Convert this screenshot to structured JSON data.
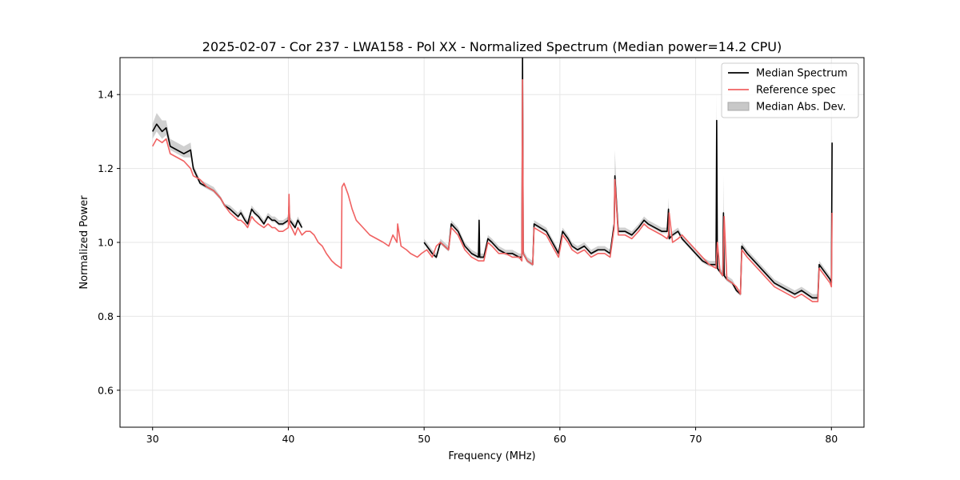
{
  "chart_data": {
    "type": "line",
    "title": "2025-02-07 - Cor 237 - LWA158 - Pol XX - Normalized Spectrum (Median power=14.2 CPU)",
    "xlabel": "Frequency (MHz)",
    "ylabel": "Normalized Power",
    "xlim": [
      27.6,
      82.4
    ],
    "ylim": [
      0.5,
      1.5
    ],
    "xticks": [
      30,
      40,
      50,
      60,
      70,
      80
    ],
    "yticks": [
      0.6,
      0.8,
      1.0,
      1.2,
      1.4
    ],
    "grid": true,
    "legend_position": "top-right",
    "colors": {
      "median": "#000000",
      "reference": "#f06262",
      "mad_fill": "#c8c8c8",
      "grid": "#e6e6e6"
    },
    "legend": [
      {
        "key": "median",
        "label": "Median Spectrum",
        "kind": "line"
      },
      {
        "key": "reference",
        "label": "Reference spec",
        "kind": "line"
      },
      {
        "key": "mad",
        "label": "Median Abs. Dev.",
        "kind": "patch"
      }
    ],
    "series": [
      {
        "name": "Reference spec",
        "x": [
          30.0,
          30.3,
          30.7,
          31.0,
          31.3,
          31.8,
          32.3,
          32.8,
          33.0,
          33.5,
          34.0,
          34.5,
          35.0,
          35.3,
          35.7,
          36.0,
          36.3,
          36.5,
          36.8,
          37.0,
          37.3,
          37.5,
          37.8,
          38.2,
          38.5,
          38.8,
          39.0,
          39.3,
          39.6,
          40.0,
          40.05,
          40.1,
          40.5,
          40.7,
          41.0,
          41.3,
          41.6,
          41.9,
          42.2,
          42.5,
          42.8,
          43.2,
          43.5,
          43.9,
          43.95,
          44.1,
          44.4,
          44.7,
          45.0,
          45.5,
          46.0,
          46.5,
          47.0,
          47.4,
          47.7,
          48.0,
          48.05,
          48.3,
          48.7,
          49.0,
          49.5,
          49.8,
          50.2,
          50.6,
          50.9,
          51.2,
          51.5,
          51.8,
          52.0,
          52.5,
          53.0,
          53.5,
          54.0,
          54.4,
          54.7,
          55.0,
          55.5,
          56.0,
          56.5,
          57.0,
          57.2,
          57.25,
          57.3,
          57.6,
          58.0,
          58.1,
          59.0,
          59.6,
          59.9,
          60.2,
          60.6,
          60.9,
          61.3,
          61.8,
          62.3,
          62.8,
          63.3,
          63.7,
          64.0,
          64.05,
          64.3,
          64.8,
          65.3,
          65.8,
          66.2,
          66.5,
          67.0,
          67.5,
          67.9,
          68.0,
          68.05,
          68.3,
          68.7,
          69.0,
          69.5,
          70.0,
          70.5,
          71.0,
          71.5,
          71.6,
          71.8,
          72.0,
          72.1,
          72.3,
          72.7,
          73.0,
          73.3,
          73.4,
          73.8,
          74.3,
          74.8,
          75.3,
          75.8,
          76.3,
          76.8,
          77.3,
          77.8,
          78.2,
          78.6,
          79.0,
          79.1,
          79.5,
          79.9,
          80.0,
          80.05
        ],
        "values": [
          1.26,
          1.28,
          1.27,
          1.28,
          1.24,
          1.23,
          1.22,
          1.2,
          1.18,
          1.17,
          1.15,
          1.14,
          1.12,
          1.1,
          1.08,
          1.07,
          1.06,
          1.06,
          1.05,
          1.04,
          1.07,
          1.06,
          1.05,
          1.04,
          1.05,
          1.04,
          1.04,
          1.03,
          1.03,
          1.04,
          1.13,
          1.05,
          1.02,
          1.04,
          1.02,
          1.03,
          1.03,
          1.02,
          1.0,
          0.99,
          0.97,
          0.95,
          0.94,
          0.93,
          1.15,
          1.16,
          1.13,
          1.09,
          1.06,
          1.04,
          1.02,
          1.01,
          1.0,
          0.99,
          1.02,
          1.0,
          1.05,
          0.99,
          0.98,
          0.97,
          0.96,
          0.97,
          0.98,
          0.96,
          0.99,
          1.0,
          0.99,
          0.98,
          1.04,
          1.02,
          0.98,
          0.96,
          0.95,
          0.95,
          1.0,
          0.99,
          0.97,
          0.97,
          0.96,
          0.96,
          0.95,
          1.44,
          0.97,
          0.95,
          0.94,
          1.04,
          1.02,
          0.98,
          0.96,
          1.02,
          1.0,
          0.98,
          0.97,
          0.98,
          0.96,
          0.97,
          0.97,
          0.96,
          1.04,
          1.17,
          1.02,
          1.02,
          1.01,
          1.03,
          1.05,
          1.04,
          1.03,
          1.02,
          1.01,
          1.02,
          1.08,
          1.0,
          1.01,
          1.02,
          1.0,
          0.98,
          0.96,
          0.94,
          0.93,
          1.0,
          0.92,
          0.91,
          1.07,
          0.9,
          0.89,
          0.88,
          0.86,
          0.98,
          0.96,
          0.94,
          0.92,
          0.9,
          0.88,
          0.87,
          0.86,
          0.85,
          0.86,
          0.85,
          0.84,
          0.84,
          0.93,
          0.91,
          0.89,
          0.88,
          1.08
        ]
      },
      {
        "name": "Median Spectrum",
        "x": [
          30.0,
          30.3,
          30.7,
          31.0,
          31.3,
          31.8,
          32.3,
          32.8,
          33.0,
          33.5,
          34.0,
          34.5,
          35.0,
          35.3,
          35.7,
          36.0,
          36.3,
          36.5,
          36.8,
          37.0,
          37.3,
          37.5,
          37.8,
          38.2,
          38.5,
          38.8,
          39.0,
          39.3,
          39.6,
          40.0,
          40.05,
          40.1,
          40.5,
          40.7,
          41.0,
          null,
          50.0,
          50.2,
          50.6,
          50.9,
          51.2,
          51.5,
          51.8,
          52.0,
          52.5,
          53.0,
          53.5,
          54.0,
          54.05,
          54.1,
          54.4,
          54.7,
          55.0,
          55.5,
          56.0,
          56.5,
          57.0,
          57.2,
          57.25,
          57.3,
          57.6,
          58.0,
          58.1,
          59.0,
          59.6,
          59.9,
          60.2,
          60.6,
          60.9,
          61.3,
          61.8,
          62.3,
          62.8,
          63.3,
          63.7,
          64.0,
          64.05,
          64.3,
          64.8,
          65.3,
          65.8,
          66.2,
          66.5,
          67.0,
          67.5,
          67.9,
          68.0,
          68.05,
          68.3,
          68.7,
          69.0,
          69.5,
          70.0,
          70.5,
          71.0,
          71.5,
          71.55,
          71.6,
          71.8,
          72.0,
          72.05,
          72.1,
          72.3,
          72.7,
          73.0,
          73.3,
          73.4,
          73.8,
          74.3,
          74.8,
          75.3,
          75.8,
          76.3,
          76.8,
          77.3,
          77.8,
          78.2,
          78.6,
          79.0,
          79.1,
          79.5,
          79.9,
          80.0,
          80.05
        ],
        "values": [
          1.3,
          1.32,
          1.3,
          1.31,
          1.26,
          1.25,
          1.24,
          1.25,
          1.2,
          1.16,
          1.15,
          1.14,
          1.12,
          1.1,
          1.09,
          1.08,
          1.07,
          1.08,
          1.06,
          1.05,
          1.09,
          1.08,
          1.07,
          1.05,
          1.07,
          1.06,
          1.06,
          1.05,
          1.05,
          1.06,
          1.1,
          1.06,
          1.04,
          1.06,
          1.04,
          null,
          1.0,
          0.99,
          0.97,
          0.96,
          1.0,
          0.99,
          0.98,
          1.05,
          1.03,
          0.99,
          0.97,
          0.96,
          1.06,
          0.96,
          0.96,
          1.01,
          1.0,
          0.98,
          0.97,
          0.97,
          0.96,
          0.96,
          1.5,
          0.97,
          0.95,
          0.94,
          1.05,
          1.03,
          0.99,
          0.97,
          1.03,
          1.01,
          0.99,
          0.98,
          0.99,
          0.97,
          0.98,
          0.98,
          0.97,
          1.05,
          1.18,
          1.03,
          1.03,
          1.02,
          1.04,
          1.06,
          1.05,
          1.04,
          1.03,
          1.03,
          1.09,
          1.01,
          1.02,
          1.03,
          1.01,
          0.99,
          0.97,
          0.95,
          0.94,
          0.94,
          1.33,
          0.93,
          0.92,
          0.91,
          1.08,
          0.91,
          0.9,
          0.89,
          0.87,
          0.86,
          0.99,
          0.97,
          0.95,
          0.93,
          0.91,
          0.89,
          0.88,
          0.87,
          0.86,
          0.87,
          0.86,
          0.85,
          0.85,
          0.94,
          0.92,
          0.9,
          0.89,
          1.27
        ]
      },
      {
        "name": "Median Abs. Dev.",
        "x": [
          30.0,
          30.3,
          30.7,
          31.0,
          31.3,
          31.8,
          32.3,
          32.8,
          33.0,
          33.5,
          34.0,
          34.5,
          35.0,
          35.3,
          35.7,
          36.0,
          36.3,
          36.5,
          36.8,
          37.0,
          37.3,
          37.5,
          37.8,
          38.2,
          38.5,
          38.8,
          39.0,
          39.3,
          39.6,
          40.0,
          40.05,
          40.1,
          40.5,
          40.7,
          41.0,
          null,
          50.0,
          50.2,
          50.6,
          50.9,
          51.2,
          51.5,
          51.8,
          52.0,
          52.5,
          53.0,
          53.5,
          54.0,
          54.05,
          54.1,
          54.4,
          54.7,
          55.0,
          55.5,
          56.0,
          56.5,
          57.0,
          57.2,
          57.25,
          57.3,
          57.6,
          58.0,
          58.1,
          59.0,
          59.6,
          59.9,
          60.2,
          60.6,
          60.9,
          61.3,
          61.8,
          62.3,
          62.8,
          63.3,
          63.7,
          64.0,
          64.05,
          64.3,
          64.8,
          65.3,
          65.8,
          66.2,
          66.5,
          67.0,
          67.5,
          67.9,
          68.0,
          68.05,
          68.3,
          68.7,
          69.0,
          69.5,
          70.0,
          70.5,
          71.0,
          71.5,
          71.55,
          71.6,
          71.8,
          72.0,
          72.05,
          72.1,
          72.3,
          72.7,
          73.0,
          73.3,
          73.4,
          73.8,
          74.3,
          74.8,
          75.3,
          75.8,
          76.3,
          76.8,
          77.3,
          77.8,
          78.2,
          78.6,
          79.0,
          79.1,
          79.5,
          79.9,
          80.0,
          80.05
        ],
        "lower": [
          1.28,
          1.3,
          1.28,
          1.29,
          1.25,
          1.24,
          1.23,
          1.23,
          1.19,
          1.155,
          1.145,
          1.135,
          1.115,
          1.095,
          1.085,
          1.075,
          1.065,
          1.075,
          1.055,
          1.045,
          1.085,
          1.075,
          1.065,
          1.045,
          1.065,
          1.055,
          1.055,
          1.045,
          1.045,
          1.055,
          1.09,
          1.055,
          1.035,
          1.055,
          1.035,
          null,
          0.995,
          0.985,
          0.965,
          0.955,
          0.995,
          0.985,
          0.975,
          1.045,
          1.025,
          0.985,
          0.965,
          0.955,
          1.04,
          0.955,
          0.955,
          1.005,
          0.995,
          0.975,
          0.965,
          0.965,
          0.955,
          0.955,
          1.45,
          0.965,
          0.945,
          0.935,
          1.045,
          1.025,
          0.985,
          0.965,
          1.025,
          1.005,
          0.985,
          0.975,
          0.985,
          0.965,
          0.975,
          0.975,
          0.965,
          1.045,
          1.12,
          1.025,
          1.025,
          1.015,
          1.035,
          1.055,
          1.045,
          1.035,
          1.025,
          1.025,
          1.06,
          1.005,
          1.015,
          1.025,
          1.005,
          0.985,
          0.965,
          0.945,
          0.935,
          0.935,
          1.25,
          0.925,
          0.915,
          0.905,
          1.0,
          0.905,
          0.895,
          0.885,
          0.865,
          0.855,
          0.985,
          0.965,
          0.945,
          0.925,
          0.905,
          0.885,
          0.875,
          0.865,
          0.855,
          0.865,
          0.855,
          0.845,
          0.845,
          0.935,
          0.915,
          0.895,
          0.885,
          1.2
        ],
        "upper": [
          1.32,
          1.35,
          1.33,
          1.33,
          1.28,
          1.27,
          1.26,
          1.27,
          1.21,
          1.17,
          1.16,
          1.15,
          1.125,
          1.105,
          1.1,
          1.09,
          1.08,
          1.09,
          1.07,
          1.06,
          1.1,
          1.09,
          1.08,
          1.06,
          1.08,
          1.07,
          1.07,
          1.06,
          1.06,
          1.07,
          1.12,
          1.07,
          1.05,
          1.07,
          1.05,
          null,
          1.01,
          1.0,
          0.98,
          0.97,
          1.01,
          1.0,
          0.99,
          1.06,
          1.04,
          1.0,
          0.98,
          0.97,
          1.08,
          0.97,
          0.97,
          1.02,
          1.01,
          0.99,
          0.98,
          0.98,
          0.97,
          0.97,
          1.5,
          0.98,
          0.96,
          0.95,
          1.06,
          1.04,
          1.0,
          0.98,
          1.04,
          1.02,
          1.0,
          0.99,
          1.0,
          0.98,
          0.99,
          0.99,
          0.98,
          1.06,
          1.25,
          1.04,
          1.04,
          1.03,
          1.05,
          1.07,
          1.06,
          1.05,
          1.04,
          1.04,
          1.12,
          1.02,
          1.03,
          1.04,
          1.02,
          1.0,
          0.98,
          0.96,
          0.95,
          0.95,
          1.4,
          0.94,
          0.93,
          0.92,
          1.18,
          0.92,
          0.91,
          0.9,
          0.88,
          0.87,
          1.0,
          0.98,
          0.96,
          0.94,
          0.92,
          0.9,
          0.89,
          0.88,
          0.87,
          0.88,
          0.87,
          0.86,
          0.86,
          0.95,
          0.93,
          0.91,
          0.9,
          1.31
        ]
      }
    ]
  }
}
